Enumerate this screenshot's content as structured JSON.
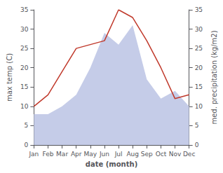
{
  "chart_data": {
    "type": "line",
    "xlabel": "date (month)",
    "ylabel": "max temp (C)",
    "y2label": "med. precipitation (kg/m2)",
    "categories": [
      "Jan",
      "Feb",
      "Mar",
      "Apr",
      "May",
      "Jun",
      "Jul",
      "Aug",
      "Sep",
      "Oct",
      "Nov",
      "Dec"
    ],
    "series": [
      {
        "type": "area",
        "color": "#c5cce8",
        "values": [
          8,
          8,
          10,
          13,
          20,
          29,
          26,
          31,
          17,
          12,
          14,
          10
        ]
      },
      {
        "type": "line",
        "color": "#c0392b",
        "axis": "y2",
        "values": [
          10,
          13,
          19,
          25,
          26,
          27,
          35,
          33,
          27,
          20,
          12,
          13
        ]
      }
    ],
    "ylim": [
      0,
      35
    ],
    "yticks": [
      0,
      5,
      10,
      15,
      20,
      25,
      30,
      35
    ],
    "y2lim": [
      0,
      35
    ],
    "y2ticks": [
      0,
      5,
      10,
      15,
      20,
      25,
      30,
      35
    ],
    "grid": false
  }
}
